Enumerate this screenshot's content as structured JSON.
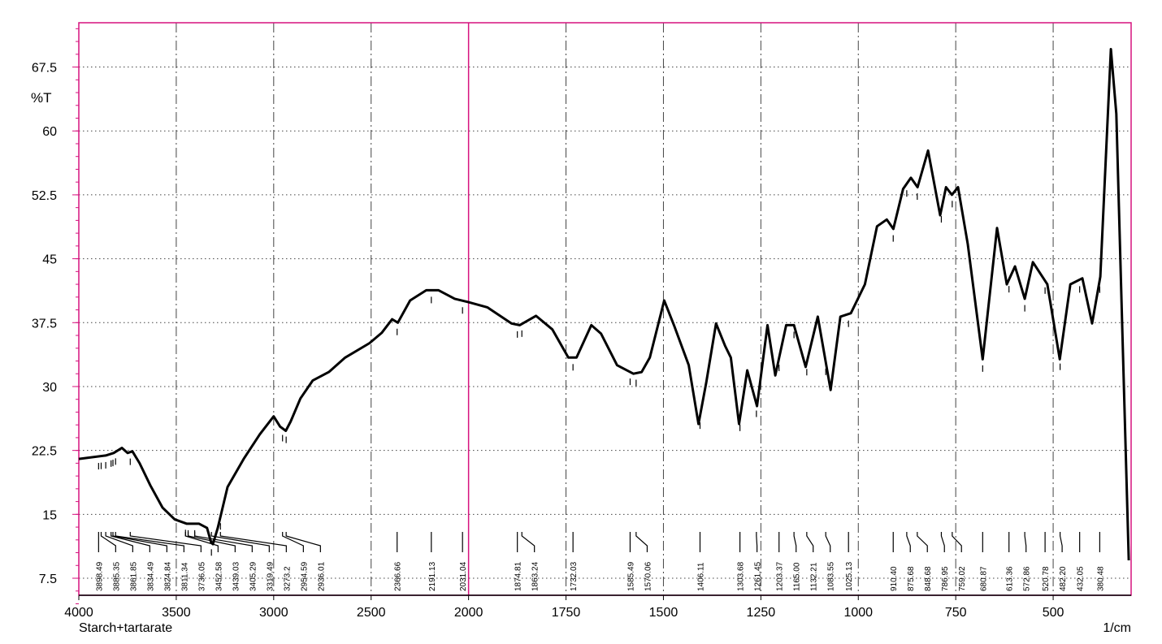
{
  "chart_data": {
    "type": "line",
    "ylabel": "%T",
    "xlabel": "1/cm",
    "sample": "Starch+tartarate",
    "color": "#000000",
    "frame_color": "#d6127e",
    "grid": true,
    "xlim": [
      4000,
      300
    ],
    "ylim": [
      5.5,
      72.7
    ],
    "xticks": [
      4000,
      3500,
      3000,
      2500,
      2000,
      1750,
      1500,
      1250,
      1000,
      750,
      500
    ],
    "yticks": [
      7.5,
      15,
      22.5,
      30,
      37.5,
      45,
      52.5,
      60,
      67.5
    ],
    "x": [
      4000,
      3862,
      3821,
      3779,
      3750,
      3725,
      3688,
      3633,
      3571,
      3508,
      3446,
      3383,
      3342,
      3321,
      3312,
      3287,
      3237,
      3154,
      3071,
      3000,
      2967,
      2938,
      2913,
      2863,
      2800,
      2717,
      2633,
      2508,
      2446,
      2392,
      2363,
      2300,
      2217,
      2154,
      2071,
      2000,
      1952,
      1890,
      1869,
      1827,
      1785,
      1744,
      1723,
      1685,
      1660,
      1619,
      1577,
      1556,
      1535,
      1498,
      1473,
      1435,
      1410,
      1390,
      1365,
      1342,
      1327,
      1306,
      1285,
      1260,
      1233,
      1213,
      1185,
      1165,
      1135,
      1104,
      1071,
      1046,
      1019,
      983,
      952,
      927,
      910,
      885,
      865,
      848,
      821,
      790,
      775,
      760,
      744,
      719,
      681,
      644,
      619,
      598,
      573,
      552,
      515,
      483,
      456,
      425,
      400,
      379,
      352,
      338,
      323,
      306
    ],
    "values": [
      21.5,
      21.9,
      22.2,
      22.8,
      22.2,
      22.4,
      21.0,
      18.4,
      15.8,
      14.4,
      13.9,
      13.9,
      13.4,
      11.7,
      11.5,
      13.4,
      18.2,
      21.5,
      24.4,
      26.5,
      25.3,
      24.8,
      25.9,
      28.6,
      30.7,
      31.7,
      33.4,
      35.1,
      36.3,
      37.9,
      37.5,
      40.1,
      41.3,
      41.3,
      40.3,
      39.9,
      39.3,
      37.4,
      37.2,
      38.3,
      36.7,
      33.4,
      33.4,
      37.2,
      36.2,
      32.5,
      31.5,
      31.7,
      33.4,
      40.1,
      37.2,
      32.5,
      25.6,
      30.5,
      37.4,
      34.8,
      33.4,
      25.6,
      31.9,
      27.7,
      37.2,
      31.3,
      37.2,
      37.2,
      32.3,
      38.2,
      29.6,
      38.2,
      38.6,
      42.0,
      48.8,
      49.6,
      48.5,
      53.2,
      54.5,
      53.4,
      57.7,
      50.1,
      53.4,
      52.5,
      53.4,
      46.7,
      33.2,
      48.6,
      42.0,
      44.1,
      40.3,
      44.6,
      42.0,
      33.2,
      42.0,
      42.7,
      37.4,
      42.9,
      69.6,
      62.0,
      37.2,
      9.6
    ],
    "peaks": [
      3898.49,
      3885.35,
      3861.85,
      3834.49,
      3824.84,
      3811.34,
      3736.05,
      3452.58,
      3439.03,
      3405.29,
      3319.49,
      3273.2,
      2954.59,
      2936.01,
      2366.66,
      2191.13,
      2031.04,
      1874.81,
      1863.24,
      1732.03,
      1585.49,
      1570.06,
      1406.11,
      1303.68,
      1261.45,
      1203.37,
      {
        "value": 1165,
        "label": "1165.00"
      },
      1132.21,
      1083.55,
      1025.13,
      {
        "value": 910.4,
        "label": "910.40"
      },
      875.68,
      848.68,
      786.95,
      759.02,
      680.87,
      613.36,
      572.86,
      520.78,
      {
        "value": 482.2,
        "label": "482.20"
      },
      432.05,
      380.48
    ]
  }
}
